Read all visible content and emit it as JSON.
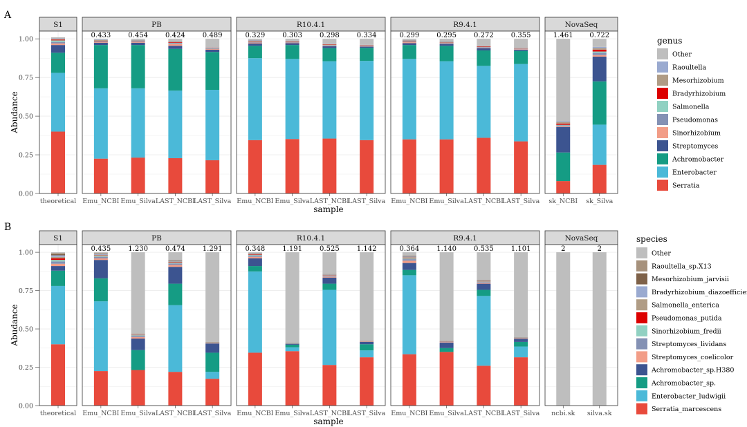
{
  "colors": {
    "panel_bg": "#ffffff",
    "grid": "#ebebeb",
    "strip_bg": "#d9d9d9",
    "strip_border": "#333333",
    "panel_border": "#333333"
  },
  "chart_data": [
    {
      "type": "bar",
      "stacked": true,
      "panel_label": "A",
      "xlabel": "sample",
      "ylabel": "Abudance",
      "ylim": [
        0,
        1.05
      ],
      "yticks": [
        "0.00",
        "0.25",
        "0.50",
        "0.75",
        "1.00"
      ],
      "legend": {
        "title": "genus",
        "position": "right"
      },
      "series": [
        {
          "name": "Serratia",
          "color": "#e84a3c"
        },
        {
          "name": "Enterobacter",
          "color": "#4bb9d8"
        },
        {
          "name": "Achromobacter",
          "color": "#159c84"
        },
        {
          "name": "Streptomyces",
          "color": "#3c5490"
        },
        {
          "name": "Sinorhizobium",
          "color": "#f29d87"
        },
        {
          "name": "Pseudomonas",
          "color": "#8491b4"
        },
        {
          "name": "Salmonella",
          "color": "#91d1c2"
        },
        {
          "name": "Bradyrhizobium",
          "color": "#dc0000"
        },
        {
          "name": "Mesorhizobium",
          "color": "#b09c85"
        },
        {
          "name": "Raoultella",
          "color": "#9aaad0"
        },
        {
          "name": "Other",
          "color": "#bebebe"
        }
      ],
      "facets": [
        {
          "label": "S1",
          "samples": [
            {
              "name": "theoretical",
              "annot": "",
              "values": [
                0.4,
                0.38,
                0.13,
                0.05,
                0.01,
                0.01,
                0.01,
                0.005,
                0.005,
                0.003,
                0.007
              ]
            }
          ]
        },
        {
          "label": "PB",
          "samples": [
            {
              "name": "Emu_NCBI",
              "annot": "0.433",
              "values": [
                0.225,
                0.455,
                0.28,
                0.015,
                0.005,
                0.003,
                0.002,
                0.003,
                0.004,
                0.002,
                0.006
              ]
            },
            {
              "name": "Emu_Silva",
              "annot": "0.454",
              "values": [
                0.232,
                0.448,
                0.28,
                0.015,
                0.005,
                0.003,
                0.002,
                0.002,
                0.003,
                0.002,
                0.008
              ]
            },
            {
              "name": "LAST_NCBI",
              "annot": "0.424",
              "values": [
                0.228,
                0.437,
                0.27,
                0.02,
                0.012,
                0.005,
                0.003,
                0.004,
                0.005,
                0.003,
                0.013
              ]
            },
            {
              "name": "LAST_Silva",
              "annot": "0.489",
              "values": [
                0.215,
                0.455,
                0.245,
                0.015,
                0.004,
                0.003,
                0.002,
                0.002,
                0.003,
                0.002,
                0.054
              ]
            }
          ]
        },
        {
          "label": "R10.4.1",
          "samples": [
            {
              "name": "Emu_NCBI",
              "annot": "0.329",
              "values": [
                0.345,
                0.53,
                0.08,
                0.015,
                0.006,
                0.003,
                0.003,
                0.003,
                0.004,
                0.003,
                0.008
              ]
            },
            {
              "name": "Emu_Silva",
              "annot": "0.303",
              "values": [
                0.352,
                0.518,
                0.09,
                0.012,
                0.004,
                0.003,
                0.002,
                0.002,
                0.003,
                0.002,
                0.012
              ]
            },
            {
              "name": "LAST_NCBI",
              "annot": "0.298",
              "values": [
                0.355,
                0.5,
                0.085,
                0.012,
                0.004,
                0.003,
                0.002,
                0.002,
                0.003,
                0.002,
                0.032
              ]
            },
            {
              "name": "LAST_Silva",
              "annot": "0.334",
              "values": [
                0.345,
                0.512,
                0.085,
                0.008,
                0.003,
                0.002,
                0.001,
                0.002,
                0.002,
                0.001,
                0.039
              ]
            }
          ]
        },
        {
          "label": "R9.4.1",
          "samples": [
            {
              "name": "Emu_NCBI",
              "annot": "0.299",
              "values": [
                0.35,
                0.52,
                0.09,
                0.012,
                0.006,
                0.003,
                0.002,
                0.003,
                0.004,
                0.002,
                0.008
              ]
            },
            {
              "name": "Emu_Silva",
              "annot": "0.295",
              "values": [
                0.35,
                0.505,
                0.1,
                0.012,
                0.004,
                0.003,
                0.002,
                0.002,
                0.003,
                0.002,
                0.017
              ]
            },
            {
              "name": "LAST_NCBI",
              "annot": "0.272",
              "values": [
                0.36,
                0.465,
                0.1,
                0.015,
                0.004,
                0.003,
                0.002,
                0.003,
                0.003,
                0.002,
                0.043
              ]
            },
            {
              "name": "LAST_Silva",
              "annot": "0.355",
              "values": [
                0.337,
                0.5,
                0.085,
                0.008,
                0.003,
                0.002,
                0.002,
                0.002,
                0.002,
                0.001,
                0.058
              ]
            }
          ]
        },
        {
          "label": "NovaSeq",
          "samples": [
            {
              "name": "sk_NCBI",
              "annot": "1.461",
              "values": [
                0.08,
                0.0,
                0.185,
                0.165,
                0.005,
                0.005,
                0.004,
                0.008,
                0.01,
                0.005,
                0.533
              ]
            },
            {
              "name": "sk_Silva",
              "annot": "0.722",
              "values": [
                0.185,
                0.26,
                0.28,
                0.16,
                0.01,
                0.015,
                0.008,
                0.012,
                0.01,
                0.008,
                0.052
              ]
            }
          ]
        }
      ]
    },
    {
      "type": "bar",
      "stacked": true,
      "panel_label": "B",
      "xlabel": "sample",
      "ylabel": "Abudance",
      "ylim": [
        0,
        1.05
      ],
      "yticks": [
        "0.00",
        "0.25",
        "0.50",
        "0.75",
        "1.00"
      ],
      "legend": {
        "title": "species",
        "position": "right"
      },
      "series": [
        {
          "name": "Serratia_marcescens",
          "color": "#e84a3c"
        },
        {
          "name": "Enterobacter_ludwigii",
          "color": "#4bb9d8"
        },
        {
          "name": "Achromobacter_sp.",
          "color": "#159c84"
        },
        {
          "name": "Achromobacter_sp.H380",
          "color": "#3c5490"
        },
        {
          "name": "Streptomyces_coelicolor",
          "color": "#f29d87"
        },
        {
          "name": "Streptomyces_lividans",
          "color": "#8491b4"
        },
        {
          "name": "Sinorhizobium_fredii",
          "color": "#91d1c2"
        },
        {
          "name": "Pseudomonas_putida",
          "color": "#dc0000"
        },
        {
          "name": "Salmonella_enterica",
          "color": "#b09c85"
        },
        {
          "name": "Bradyrhizobium_diazoefficiens",
          "color": "#9aaad0"
        },
        {
          "name": "Mesorhizobium_jarvisii",
          "color": "#7e6148"
        },
        {
          "name": "Raoultella_sp.X13",
          "color": "#a6917c"
        },
        {
          "name": "Other",
          "color": "#bebebe"
        }
      ],
      "facets": [
        {
          "label": "S1",
          "samples": [
            {
              "name": "theoretical",
              "annot": "",
              "values": [
                0.4,
                0.38,
                0.1,
                0.03,
                0.015,
                0.015,
                0.01,
                0.01,
                0.01,
                0.01,
                0.008,
                0.007,
                0.005
              ]
            }
          ]
        },
        {
          "label": "PB",
          "samples": [
            {
              "name": "Emu_NCBI",
              "annot": "0.435",
              "values": [
                0.225,
                0.455,
                0.15,
                0.12,
                0.01,
                0.01,
                0.006,
                0.003,
                0.004,
                0.004,
                0.003,
                0.003,
                0.007
              ]
            },
            {
              "name": "Emu_Silva",
              "annot": "1.230",
              "values": [
                0.232,
                0.0,
                0.13,
                0.075,
                0.01,
                0.008,
                0.004,
                0.002,
                0.002,
                0.002,
                0.002,
                0.003,
                0.53
              ]
            },
            {
              "name": "LAST_NCBI",
              "annot": "0.474",
              "values": [
                0.22,
                0.435,
                0.14,
                0.11,
                0.012,
                0.01,
                0.005,
                0.003,
                0.005,
                0.004,
                0.003,
                0.003,
                0.05
              ]
            },
            {
              "name": "LAST_Silva",
              "annot": "1.291",
              "values": [
                0.175,
                0.045,
                0.125,
                0.06,
                0.001,
                0.001,
                0.001,
                0.001,
                0.001,
                0.001,
                0.001,
                0.002,
                0.586
              ]
            }
          ]
        },
        {
          "label": "R10.4.1",
          "samples": [
            {
              "name": "Emu_NCBI",
              "annot": "0.348",
              "values": [
                0.345,
                0.53,
                0.035,
                0.05,
                0.01,
                0.008,
                0.004,
                0.003,
                0.003,
                0.003,
                0.002,
                0.002,
                0.005
              ]
            },
            {
              "name": "Emu_Silva",
              "annot": "1.191",
              "values": [
                0.355,
                0.025,
                0.017,
                0.006,
                0.001,
                0.001,
                0.001,
                0.0,
                0.001,
                0.0,
                0.001,
                0.001,
                0.591
              ]
            },
            {
              "name": "LAST_NCBI",
              "annot": "0.525",
              "values": [
                0.265,
                0.49,
                0.04,
                0.04,
                0.006,
                0.005,
                0.003,
                0.002,
                0.002,
                0.002,
                0.002,
                0.002,
                0.141
              ]
            },
            {
              "name": "LAST_Silva",
              "annot": "1.142",
              "values": [
                0.315,
                0.045,
                0.04,
                0.015,
                0.002,
                0.001,
                0.001,
                0.001,
                0.001,
                0.001,
                0.001,
                0.001,
                0.576
              ]
            }
          ]
        },
        {
          "label": "R9.4.1",
          "samples": [
            {
              "name": "Emu_NCBI",
              "annot": "0.364",
              "values": [
                0.335,
                0.515,
                0.035,
                0.045,
                0.015,
                0.01,
                0.006,
                0.003,
                0.004,
                0.004,
                0.003,
                0.003,
                0.022
              ]
            },
            {
              "name": "Emu_Silva",
              "annot": "1.140",
              "values": [
                0.35,
                0.0,
                0.025,
                0.035,
                0.003,
                0.003,
                0.002,
                0.001,
                0.001,
                0.001,
                0.001,
                0.002,
                0.576
              ]
            },
            {
              "name": "LAST_NCBI",
              "annot": "0.535",
              "values": [
                0.26,
                0.455,
                0.04,
                0.04,
                0.006,
                0.005,
                0.004,
                0.002,
                0.002,
                0.002,
                0.002,
                0.002,
                0.18
              ]
            },
            {
              "name": "LAST_Silva",
              "annot": "1.101",
              "values": [
                0.315,
                0.07,
                0.03,
                0.02,
                0.002,
                0.002,
                0.001,
                0.001,
                0.001,
                0.001,
                0.001,
                0.001,
                0.555
              ]
            }
          ]
        },
        {
          "label": "NovaSeq",
          "samples": [
            {
              "name": "ncbi.sk",
              "annot": "2",
              "values": [
                0,
                0,
                0,
                0,
                0,
                0,
                0,
                0,
                0,
                0,
                0,
                0,
                1.0
              ]
            },
            {
              "name": "silva.sk",
              "annot": "2",
              "values": [
                0,
                0,
                0,
                0,
                0,
                0,
                0,
                0,
                0,
                0,
                0,
                0,
                1.0
              ]
            }
          ]
        }
      ]
    }
  ]
}
